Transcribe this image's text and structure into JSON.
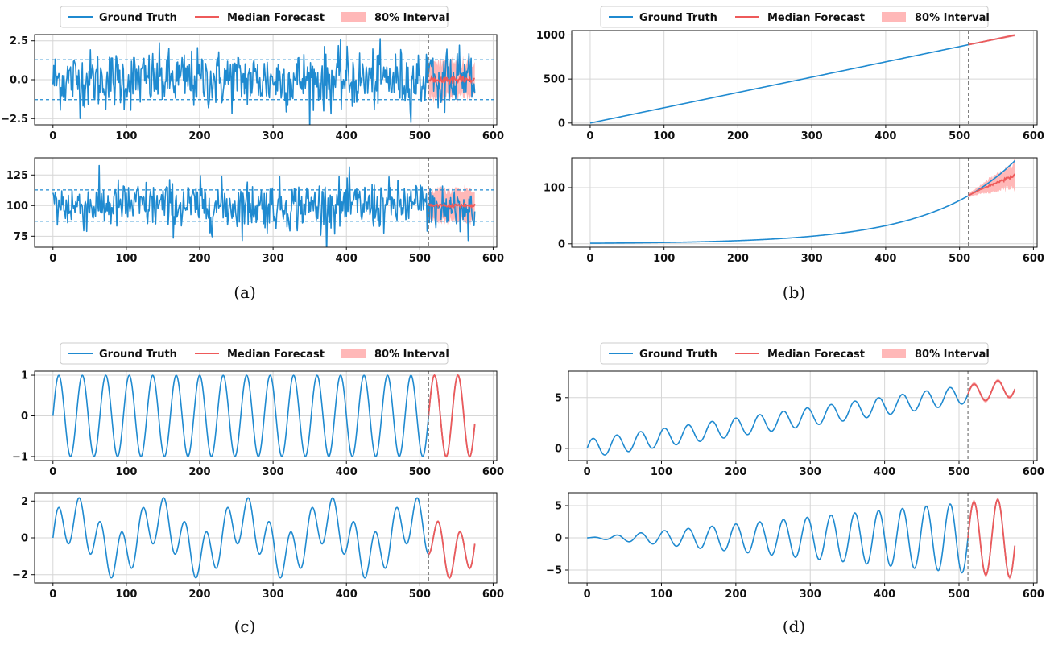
{
  "legend": {
    "ground_truth": "Ground Truth",
    "median_forecast": "Median Forecast",
    "interval": "80% Interval"
  },
  "colors": {
    "ground_truth": "#1f8ad0",
    "median": "#ee5a5a",
    "interval": "#ffb8b8",
    "forecast_start": "#777777",
    "grid": "#d6d6d6"
  },
  "captions": [
    "(a)",
    "(b)",
    "(c)",
    "(d)"
  ],
  "chart_data": [
    {
      "panel": "(a)",
      "type": "line",
      "kind": "noise",
      "title": "",
      "xlabel": "",
      "ylabel": "",
      "x_range": [
        0,
        576
      ],
      "forecast_start": 512,
      "xlim": [
        -25,
        605
      ],
      "ylim": [
        -2.9,
        2.9
      ],
      "xticks": [
        0,
        100,
        200,
        300,
        400,
        500,
        600
      ],
      "yticks": [
        -2.5,
        0,
        2.5
      ],
      "ytick_labels": [
        "−2.5",
        "0.0",
        "2.5"
      ],
      "mean": 0,
      "std": 0.95,
      "band_lines": [
        -1.28,
        1.28
      ],
      "interval_halfwidth": 1.2,
      "grid": true
    },
    {
      "panel": "(a)",
      "type": "line",
      "kind": "noise",
      "title": "",
      "xlabel": "",
      "ylabel": "",
      "x_range": [
        0,
        576
      ],
      "forecast_start": 512,
      "xlim": [
        -25,
        605
      ],
      "ylim": [
        66,
        139
      ],
      "xticks": [
        0,
        100,
        200,
        300,
        400,
        500,
        600
      ],
      "yticks": [
        75,
        100,
        125
      ],
      "ytick_labels": [
        "75",
        "100",
        "125"
      ],
      "mean": 100,
      "std": 10,
      "band_lines": [
        87.2,
        112.8
      ],
      "interval_halfwidth": 13,
      "grid": true
    },
    {
      "panel": "(b)",
      "type": "line",
      "kind": "linear",
      "title": "",
      "xlabel": "",
      "ylabel": "",
      "x_range": [
        0,
        576
      ],
      "forecast_start": 512,
      "xlim": [
        -25,
        605
      ],
      "ylim": [
        -20,
        1050
      ],
      "xticks": [
        0,
        100,
        200,
        300,
        400,
        500,
        600
      ],
      "yticks": [
        0,
        500,
        1000
      ],
      "ytick_labels": [
        "0",
        "500",
        "1000"
      ],
      "slope": 1.737,
      "intercept": 0,
      "grid": true
    },
    {
      "panel": "(b)",
      "type": "line",
      "kind": "exponential",
      "title": "",
      "xlabel": "",
      "ylabel": "",
      "x_range": [
        0,
        576
      ],
      "forecast_start": 512,
      "xlim": [
        -25,
        605
      ],
      "ylim": [
        -6,
        153
      ],
      "xticks": [
        0,
        100,
        200,
        300,
        400,
        500,
        600
      ],
      "yticks": [
        0,
        100
      ],
      "ytick_labels": [
        "0",
        "100"
      ],
      "truth_end": 148,
      "median_end": 122,
      "grid": true
    },
    {
      "panel": "(c)",
      "type": "line",
      "kind": "sine",
      "title": "",
      "xlabel": "",
      "ylabel": "",
      "x_range": [
        0,
        576
      ],
      "forecast_start": 512,
      "xlim": [
        -25,
        605
      ],
      "ylim": [
        -1.1,
        1.1
      ],
      "xticks": [
        0,
        100,
        200,
        300,
        400,
        500,
        600
      ],
      "yticks": [
        -1,
        0,
        1
      ],
      "ytick_labels": [
        "−1",
        "0",
        "1"
      ],
      "amplitude": 1,
      "period": 32,
      "grid": true
    },
    {
      "panel": "(c)",
      "type": "line",
      "kind": "multi_sine",
      "title": "",
      "xlabel": "",
      "ylabel": "",
      "x_range": [
        0,
        576
      ],
      "forecast_start": 512,
      "xlim": [
        -25,
        605
      ],
      "ylim": [
        -2.45,
        2.45
      ],
      "xticks": [
        0,
        100,
        200,
        300,
        400,
        500,
        600
      ],
      "yticks": [
        -2,
        0,
        2
      ],
      "ytick_labels": [
        "−2",
        "0",
        "2"
      ],
      "components": [
        {
          "amplitude": 1.25,
          "period": 28.8
        },
        {
          "amplitude": 1.0,
          "period": 115.2
        }
      ],
      "grid": true
    },
    {
      "panel": "(d)",
      "type": "line",
      "kind": "trend_sine",
      "title": "",
      "xlabel": "",
      "ylabel": "",
      "x_range": [
        0,
        576
      ],
      "forecast_start": 512,
      "xlim": [
        -25,
        605
      ],
      "ylim": [
        -1.2,
        7.6
      ],
      "xticks": [
        0,
        100,
        200,
        300,
        400,
        500,
        600
      ],
      "yticks": [
        0,
        5
      ],
      "ytick_labels": [
        "0",
        "5"
      ],
      "trend_end": 6.0,
      "amplitude": 0.9,
      "period": 32,
      "grid": true
    },
    {
      "panel": "(d)",
      "type": "line",
      "kind": "growing_sine",
      "title": "",
      "xlabel": "",
      "ylabel": "",
      "x_range": [
        0,
        576
      ],
      "forecast_start": 512,
      "xlim": [
        -25,
        605
      ],
      "ylim": [
        -7,
        7
      ],
      "xticks": [
        0,
        100,
        200,
        300,
        400,
        500,
        600
      ],
      "yticks": [
        -5,
        0,
        5
      ],
      "ytick_labels": [
        "−5",
        "0",
        "5"
      ],
      "amplitude_end": 6.2,
      "period": 32,
      "grid": true
    }
  ]
}
